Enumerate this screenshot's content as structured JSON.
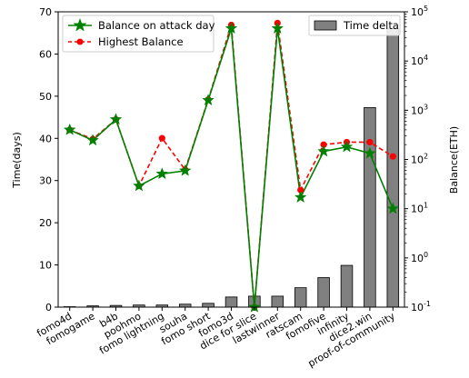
{
  "chart_data": {
    "type": "bar+line",
    "categories": [
      "fomo4d",
      "fomogame",
      "b4b",
      "poohmo",
      "fomo lightning",
      "souha",
      "fomo short",
      "fomo3d",
      "dice for slice",
      "lastwinner",
      "ratscam",
      "fomofive",
      "infinity",
      "dice2.win",
      "proof-of-community"
    ],
    "bar_series": {
      "name": "Time delta",
      "axis": "left",
      "color": "#808080",
      "values": [
        0.1,
        0.3,
        0.4,
        0.5,
        0.5,
        0.7,
        0.9,
        2.4,
        2.6,
        2.6,
        4.6,
        7.0,
        9.9,
        47.3,
        66.0
      ]
    },
    "line_series": [
      {
        "name": "Balance on attack day",
        "axis": "right",
        "color": "#008000",
        "marker": "star",
        "linestyle": "solid",
        "values": [
          400,
          245,
          650,
          29,
          51,
          59,
          1600,
          46000,
          0.1,
          46000,
          17,
          146,
          180,
          133,
          10
        ]
      },
      {
        "name": "Highest Balance",
        "axis": "right",
        "color": "#ff0000",
        "marker": "circle",
        "linestyle": "dashed",
        "values": [
          400,
          260,
          650,
          29,
          270,
          62,
          1650,
          54000,
          0.1,
          59000,
          24,
          200,
          225,
          225,
          115
        ]
      }
    ],
    "ylabel_left": "Time(days)",
    "ylabel_right": "Balance(ETH)",
    "xlabel": "",
    "title": "",
    "ylim_left": [
      0,
      70
    ],
    "yticks_left": [
      0,
      10,
      20,
      30,
      40,
      50,
      60,
      70
    ],
    "ylim_right": [
      0.1,
      100000
    ],
    "yscale_right": "log",
    "yticks_right": [
      "10^-1",
      "10^0",
      "10^1",
      "10^2",
      "10^3",
      "10^4",
      "10^5"
    ],
    "legend_left_placement": "top-left",
    "legend_right_placement": "top-right",
    "grid": false
  }
}
